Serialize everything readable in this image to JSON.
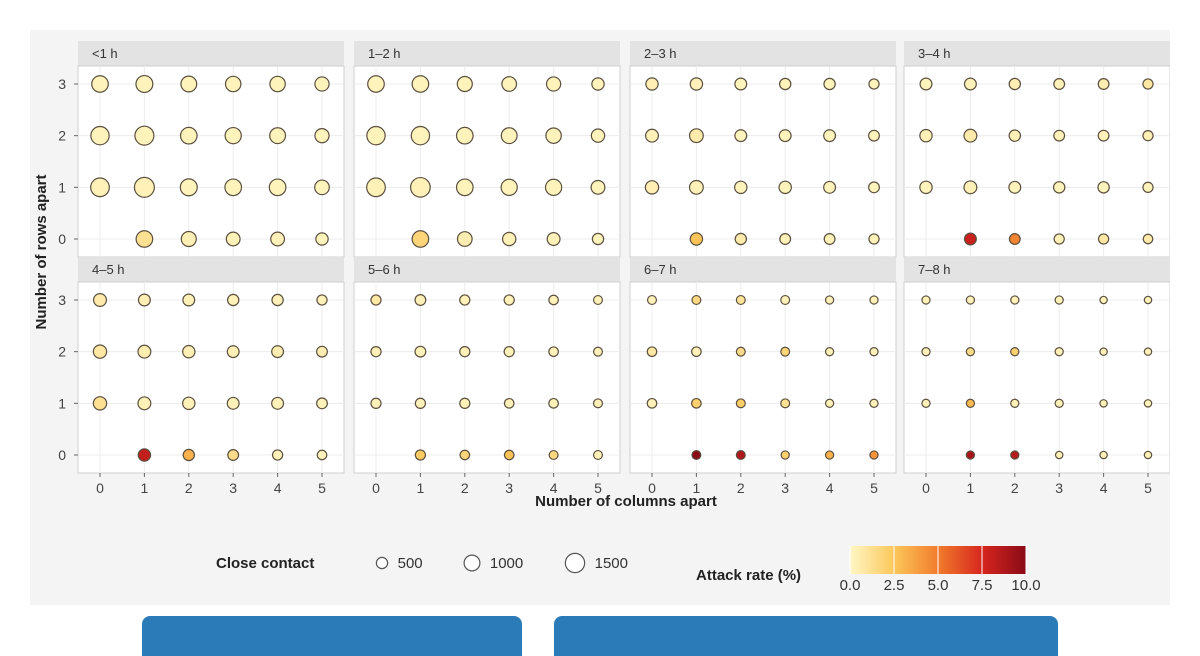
{
  "chart_data": {
    "type": "scatter",
    "xlabel": "Number of columns apart",
    "ylabel": "Number of rows apart",
    "x_ticks": [
      "0",
      "1",
      "2",
      "3",
      "4",
      "5"
    ],
    "y_ticks": [
      "0",
      "1",
      "2",
      "3"
    ],
    "facet_variable": "time",
    "size_legend": {
      "title": "Close contact",
      "values": [
        500,
        1000,
        1500
      ]
    },
    "color_legend": {
      "title": "Attack rate (%)",
      "ticks": [
        "0.0",
        "2.5",
        "5.0",
        "7.5",
        "10.0"
      ],
      "range": [
        0,
        10
      ],
      "colors": [
        "#fff7c5",
        "#fcc75a",
        "#f17c2c",
        "#d7261e",
        "#8a0a18"
      ]
    },
    "panels": [
      {
        "label": "<1 h",
        "points": [
          {
            "row": 3,
            "values": [
              [
                1100,
                0.2
              ],
              [
                1150,
                0.2
              ],
              [
                1000,
                0.2
              ],
              [
                950,
                0.2
              ],
              [
                950,
                0.2
              ],
              [
                800,
                0.2
              ]
            ]
          },
          {
            "row": 2,
            "values": [
              [
                1350,
                0.2
              ],
              [
                1450,
                0.2
              ],
              [
                1100,
                0.2
              ],
              [
                1050,
                0.2
              ],
              [
                1000,
                0.2
              ],
              [
                800,
                0.2
              ]
            ]
          },
          {
            "row": 1,
            "values": [
              [
                1400,
                0.3
              ],
              [
                1600,
                0.3
              ],
              [
                1150,
                0.2
              ],
              [
                1100,
                0.2
              ],
              [
                1100,
                0.2
              ],
              [
                850,
                0.2
              ]
            ]
          },
          {
            "row": 0,
            "values": [
              null,
              [
                1100,
                1.2
              ],
              [
                900,
                0.4
              ],
              [
                750,
                0.3
              ],
              [
                750,
                0.3
              ],
              [
                600,
                0.2
              ]
            ]
          }
        ]
      },
      {
        "label": "1–2 h",
        "points": [
          {
            "row": 3,
            "values": [
              [
                1100,
                0.2
              ],
              [
                1100,
                0.2
              ],
              [
                900,
                0.2
              ],
              [
                850,
                0.2
              ],
              [
                800,
                0.2
              ],
              [
                600,
                0.2
              ]
            ]
          },
          {
            "row": 2,
            "values": [
              [
                1350,
                0.2
              ],
              [
                1350,
                0.2
              ],
              [
                1100,
                0.2
              ],
              [
                1000,
                0.2
              ],
              [
                950,
                0.2
              ],
              [
                700,
                0.2
              ]
            ]
          },
          {
            "row": 1,
            "values": [
              [
                1400,
                0.3
              ],
              [
                1550,
                0.3
              ],
              [
                1100,
                0.2
              ],
              [
                1050,
                0.2
              ],
              [
                1050,
                0.2
              ],
              [
                750,
                0.2
              ]
            ]
          },
          {
            "row": 0,
            "values": [
              null,
              [
                1100,
                1.8
              ],
              [
                850,
                0.5
              ],
              [
                700,
                0.3
              ],
              [
                650,
                0.3
              ],
              [
                500,
                0.2
              ]
            ]
          }
        ]
      },
      {
        "label": "2–3 h",
        "points": [
          {
            "row": 3,
            "values": [
              [
                600,
                0.4
              ],
              [
                600,
                0.3
              ],
              [
                550,
                0.2
              ],
              [
                500,
                0.2
              ],
              [
                500,
                0.2
              ],
              [
                400,
                0.2
              ]
            ]
          },
          {
            "row": 2,
            "values": [
              [
                650,
                0.3
              ],
              [
                750,
                0.6
              ],
              [
                550,
                0.2
              ],
              [
                550,
                0.2
              ],
              [
                550,
                0.2
              ],
              [
                450,
                0.2
              ]
            ]
          },
          {
            "row": 1,
            "values": [
              [
                700,
                0.4
              ],
              [
                750,
                0.3
              ],
              [
                600,
                0.2
              ],
              [
                600,
                0.2
              ],
              [
                550,
                0.2
              ],
              [
                450,
                0.2
              ]
            ]
          },
          {
            "row": 0,
            "values": [
              null,
              [
                600,
                2.6
              ],
              [
                500,
                0.6
              ],
              [
                450,
                0.3
              ],
              [
                450,
                0.3
              ],
              [
                400,
                0.3
              ]
            ]
          }
        ]
      },
      {
        "label": "3–4 h",
        "points": [
          {
            "row": 3,
            "values": [
              [
                550,
                0.2
              ],
              [
                550,
                0.3
              ],
              [
                500,
                0.4
              ],
              [
                450,
                0.3
              ],
              [
                450,
                0.5
              ],
              [
                400,
                0.8
              ]
            ]
          },
          {
            "row": 2,
            "values": [
              [
                600,
                0.3
              ],
              [
                650,
                0.6
              ],
              [
                500,
                0.3
              ],
              [
                450,
                0.3
              ],
              [
                450,
                0.3
              ],
              [
                400,
                0.4
              ]
            ]
          },
          {
            "row": 1,
            "values": [
              [
                600,
                0.2
              ],
              [
                650,
                0.3
              ],
              [
                550,
                0.2
              ],
              [
                500,
                0.2
              ],
              [
                500,
                0.2
              ],
              [
                400,
                0.2
              ]
            ]
          },
          {
            "row": 0,
            "values": [
              null,
              [
                550,
                8.0
              ],
              [
                450,
                4.8
              ],
              [
                400,
                0.3
              ],
              [
                400,
                0.8
              ],
              [
                350,
                0.6
              ]
            ]
          }
        ]
      },
      {
        "label": "4–5 h",
        "points": [
          {
            "row": 3,
            "values": [
              [
                650,
                0.6
              ],
              [
                550,
                0.4
              ],
              [
                550,
                0.3
              ],
              [
                500,
                0.3
              ],
              [
                500,
                0.3
              ],
              [
                400,
                0.3
              ]
            ]
          },
          {
            "row": 2,
            "values": [
              [
                700,
                0.8
              ],
              [
                650,
                0.5
              ],
              [
                600,
                0.4
              ],
              [
                550,
                0.4
              ],
              [
                550,
                0.5
              ],
              [
                450,
                0.5
              ]
            ]
          },
          {
            "row": 1,
            "values": [
              [
                700,
                1.2
              ],
              [
                650,
                0.3
              ],
              [
                600,
                0.3
              ],
              [
                550,
                0.3
              ],
              [
                550,
                0.3
              ],
              [
                450,
                0.3
              ]
            ]
          },
          {
            "row": 0,
            "values": [
              null,
              [
                600,
                8.2
              ],
              [
                500,
                3.2
              ],
              [
                450,
                1.4
              ],
              [
                400,
                0.3
              ],
              [
                350,
                0.3
              ]
            ]
          }
        ]
      },
      {
        "label": "5–6 h",
        "points": [
          {
            "row": 3,
            "values": [
              [
                400,
                0.8
              ],
              [
                450,
                0.3
              ],
              [
                400,
                0.3
              ],
              [
                400,
                0.3
              ],
              [
                350,
                0.3
              ],
              [
                300,
                0.3
              ]
            ]
          },
          {
            "row": 2,
            "values": [
              [
                400,
                0.3
              ],
              [
                450,
                0.3
              ],
              [
                400,
                0.3
              ],
              [
                400,
                0.3
              ],
              [
                350,
                0.3
              ],
              [
                300,
                0.3
              ]
            ]
          },
          {
            "row": 1,
            "values": [
              [
                400,
                0.3
              ],
              [
                400,
                0.3
              ],
              [
                400,
                0.3
              ],
              [
                350,
                0.3
              ],
              [
                350,
                0.3
              ],
              [
                300,
                0.3
              ]
            ]
          },
          {
            "row": 0,
            "values": [
              null,
              [
                400,
                2.3
              ],
              [
                350,
                1.8
              ],
              [
                350,
                2.6
              ],
              [
                300,
                1.6
              ],
              [
                300,
                0.3
              ]
            ]
          }
        ]
      },
      {
        "label": "6–7 h",
        "points": [
          {
            "row": 3,
            "values": [
              [
                300,
                0.3
              ],
              [
                300,
                1.6
              ],
              [
                300,
                1.0
              ],
              [
                300,
                0.3
              ],
              [
                250,
                0.3
              ],
              [
                250,
                0.3
              ]
            ]
          },
          {
            "row": 2,
            "values": [
              [
                350,
                0.8
              ],
              [
                350,
                0.3
              ],
              [
                300,
                1.4
              ],
              [
                300,
                1.8
              ],
              [
                250,
                0.3
              ],
              [
                250,
                0.3
              ]
            ]
          },
          {
            "row": 1,
            "values": [
              [
                350,
                0.3
              ],
              [
                350,
                2.0
              ],
              [
                300,
                2.2
              ],
              [
                300,
                1.2
              ],
              [
                250,
                0.3
              ],
              [
                250,
                0.3
              ]
            ]
          },
          {
            "row": 0,
            "values": [
              null,
              [
                300,
                10.0
              ],
              [
                300,
                8.8
              ],
              [
                250,
                2.0
              ],
              [
                250,
                3.2
              ],
              [
                250,
                4.2
              ]
            ]
          }
        ]
      },
      {
        "label": "7–8 h",
        "points": [
          {
            "row": 3,
            "values": [
              [
                250,
                0.3
              ],
              [
                250,
                0.3
              ],
              [
                250,
                0.3
              ],
              [
                250,
                0.3
              ],
              [
                200,
                0.3
              ],
              [
                200,
                0.3
              ]
            ]
          },
          {
            "row": 2,
            "values": [
              [
                250,
                0.3
              ],
              [
                250,
                1.4
              ],
              [
                250,
                2.0
              ],
              [
                250,
                0.3
              ],
              [
                200,
                0.3
              ],
              [
                200,
                0.3
              ]
            ]
          },
          {
            "row": 1,
            "values": [
              [
                250,
                0.3
              ],
              [
                250,
                3.0
              ],
              [
                250,
                0.3
              ],
              [
                250,
                0.3
              ],
              [
                200,
                0.3
              ],
              [
                200,
                0.3
              ]
            ]
          },
          {
            "row": 0,
            "values": [
              null,
              [
                250,
                9.0
              ],
              [
                250,
                8.6
              ],
              [
                200,
                0.3
              ],
              [
                200,
                0.3
              ],
              [
                200,
                0.3
              ]
            ]
          }
        ]
      }
    ]
  },
  "legend": {
    "size_title": "Close contact",
    "size_labels": [
      "500",
      "1000",
      "1500"
    ],
    "color_title": "Attack rate (%)",
    "color_ticks": [
      "0.0",
      "2.5",
      "5.0",
      "7.5",
      "10.0"
    ]
  }
}
